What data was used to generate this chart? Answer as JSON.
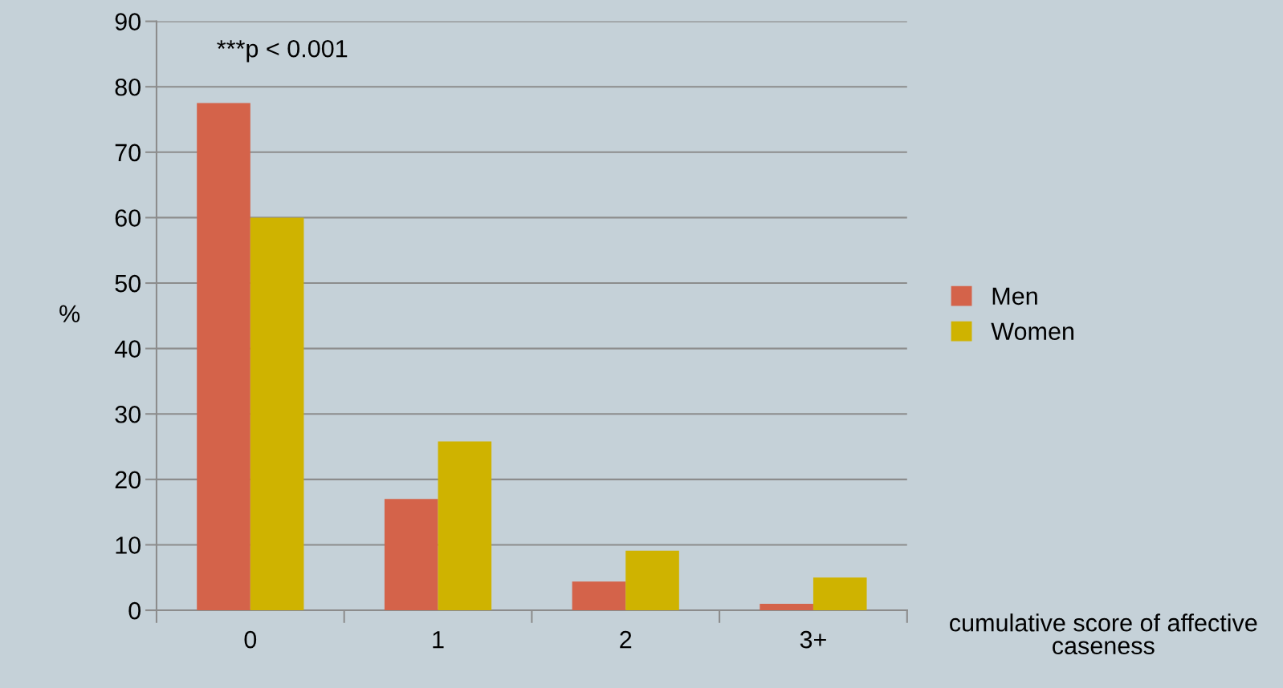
{
  "chart_data": {
    "type": "bar",
    "categories": [
      "0",
      "1",
      "2",
      "3+"
    ],
    "series": [
      {
        "name": "Men",
        "color": "#d4634a",
        "values": [
          77.5,
          17.0,
          4.4,
          1.0
        ]
      },
      {
        "name": "Women",
        "color": "#cfb300",
        "values": [
          60,
          25.8,
          9.1,
          5.0
        ]
      }
    ],
    "ylabel": "%",
    "xlabel": "cumulative score of affective caseness",
    "annotations": [
      "***p < 0.001"
    ],
    "ylim": [
      0,
      90
    ],
    "yticks": [
      0,
      10,
      20,
      30,
      40,
      50,
      60,
      70,
      80,
      90
    ],
    "grid": "y",
    "legend": "right"
  }
}
